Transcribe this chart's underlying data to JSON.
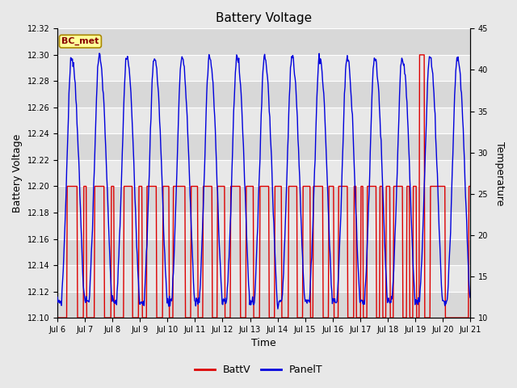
{
  "title": "Battery Voltage",
  "xlabel": "Time",
  "ylabel_left": "Battery Voltage",
  "ylabel_right": "Temperature",
  "series": {
    "BattV": {
      "color": "#dd0000",
      "label": "BattV"
    },
    "PanelT": {
      "color": "#0000dd",
      "label": "PanelT"
    }
  },
  "left_ylim": [
    12.1,
    12.32
  ],
  "right_ylim": [
    10,
    45
  ],
  "left_yticks": [
    12.1,
    12.12,
    12.14,
    12.16,
    12.18,
    12.2,
    12.22,
    12.24,
    12.26,
    12.28,
    12.3,
    12.32
  ],
  "right_yticks": [
    10,
    15,
    20,
    25,
    30,
    35,
    40,
    45
  ],
  "xtick_labels": [
    "Jul 6",
    "Jul 7",
    "Jul 8",
    "Jul 9",
    "Jul 10",
    "Jul 11",
    "Jul 12",
    "Jul 13",
    "Jul 14",
    "Jul 15",
    "Jul 16",
    "Jul 17",
    "Jul 18",
    "Jul 19",
    "Jul 20",
    "Jul 21"
  ],
  "plot_bg_light": "#f0f0f0",
  "plot_bg_dark": "#e0e0e0",
  "grid_color": "#ffffff",
  "fig_bg": "#e8e8e8",
  "annotation": {
    "text": "BC_met",
    "bg_color": "#ffff99",
    "border_color": "#aa8800",
    "text_color": "#880000"
  },
  "batt_high": 12.2,
  "batt_low": 12.1,
  "batt_spike": 12.3,
  "temp_base": 25,
  "temp_amp_day": 14,
  "temp_amp_night": 11
}
